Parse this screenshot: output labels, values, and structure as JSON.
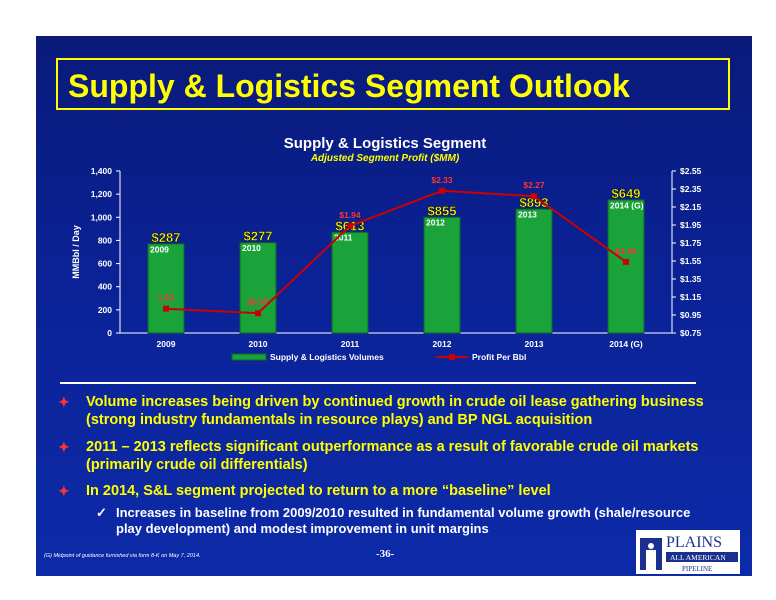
{
  "slide_title": "Supply & Logistics Segment Outlook",
  "chart_data": {
    "type": "bar",
    "title": "Supply & Logistics Segment",
    "subtitle": "Adjusted Segment Profit ($MM)",
    "ylabel": "MMBbl / Day",
    "categories": [
      "2009",
      "2010",
      "2011",
      "2012",
      "2013",
      "2014 (G)"
    ],
    "ylim": [
      0,
      1400
    ],
    "y2lim": [
      0.75,
      2.55
    ],
    "yticks": [
      "0",
      "200",
      "400",
      "600",
      "800",
      "1,000",
      "1,200",
      "1,400"
    ],
    "y2ticks": [
      "$0.75",
      "$0.95",
      "$1.15",
      "$1.35",
      "$1.55",
      "$1.75",
      "$1.95",
      "$2.15",
      "$2.35",
      "$2.55"
    ],
    "series": [
      {
        "name": "Supply & Logistics Volumes",
        "kind": "bar",
        "axis": "left",
        "color": "#1aa33a",
        "values": [
          770,
          780,
          870,
          1000,
          1070,
          1150
        ]
      },
      {
        "name": "Profit Per Bbl",
        "kind": "line",
        "axis": "right",
        "color": "#cc0000",
        "values": [
          1.02,
          0.97,
          1.94,
          2.33,
          2.27,
          1.54
        ],
        "labels": [
          "1.02",
          "$0.97",
          "$1.94",
          "$2.33",
          "$2.27",
          "$1.54"
        ]
      }
    ],
    "bar_labels": [
      "$287",
      "$277",
      "$613",
      "$855",
      "$893",
      "$649"
    ],
    "legend_position": "bottom"
  },
  "bullets": [
    {
      "text": "Volume increases being driven by continued growth in crude oil lease gathering business (strong industry fundamentals in resource plays) and BP NGL acquisition"
    },
    {
      "text": "2011 – 2013 reflects significant outperformance as a result of favorable crude oil markets (primarily crude oil differentials)"
    },
    {
      "text": "In 2014, S&L segment projected to return to a more “baseline” level"
    }
  ],
  "sub_bullet": "Increases in baseline from 2009/2010 resulted in fundamental volume growth (shale/resource play development) and modest improvement in unit margins",
  "bullet_mark": "✦",
  "check_mark": "✓",
  "footnote": "(G) Midpoint of guidance furnished via form 8-K on May 7, 2014.",
  "page_number": "-36-",
  "logo": {
    "line1": "PLAINS",
    "line2": "ALL AMERICAN",
    "line3": "PIPELINE"
  }
}
